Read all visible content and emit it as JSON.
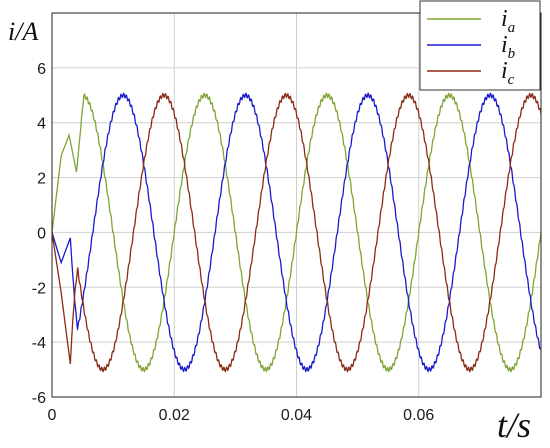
{
  "chart_data": {
    "type": "line",
    "xlabel": "t/s",
    "ylabel": "i/A",
    "xlim": [
      0,
      0.08
    ],
    "ylim": [
      -6,
      8
    ],
    "grid": true,
    "legend_position": "top-right",
    "x_ticks": [
      "0",
      "0.02",
      "0.04",
      "0.06"
    ],
    "y_ticks": [
      "-6",
      "-4",
      "-2",
      "0",
      "2",
      "4",
      "6"
    ],
    "series": [
      {
        "name": "i_a",
        "label_main": "i",
        "label_sub": "a",
        "color": "#7ea536",
        "amplitude": 5,
        "frequency_hz": 50,
        "phase_deg": 0,
        "startup_points": [
          [
            0,
            0
          ],
          [
            0.0015,
            2.8
          ],
          [
            0.0028,
            3.55
          ],
          [
            0.004,
            2.2
          ]
        ]
      },
      {
        "name": "i_b",
        "label_main": "i",
        "label_sub": "b",
        "color": "#1a1acc",
        "amplitude": 5,
        "frequency_hz": 50,
        "phase_deg": -120,
        "startup_points": [
          [
            0,
            0
          ],
          [
            0.0015,
            -1.1
          ],
          [
            0.003,
            -0.2
          ]
        ]
      },
      {
        "name": "i_c",
        "label_main": "i",
        "label_sub": "c",
        "color": "#8b2a14",
        "amplitude": 5,
        "frequency_hz": 50,
        "phase_deg": 120,
        "startup_points": [
          [
            0,
            0
          ],
          [
            0.0015,
            -2.2
          ],
          [
            0.003,
            -4.8
          ]
        ]
      }
    ]
  }
}
